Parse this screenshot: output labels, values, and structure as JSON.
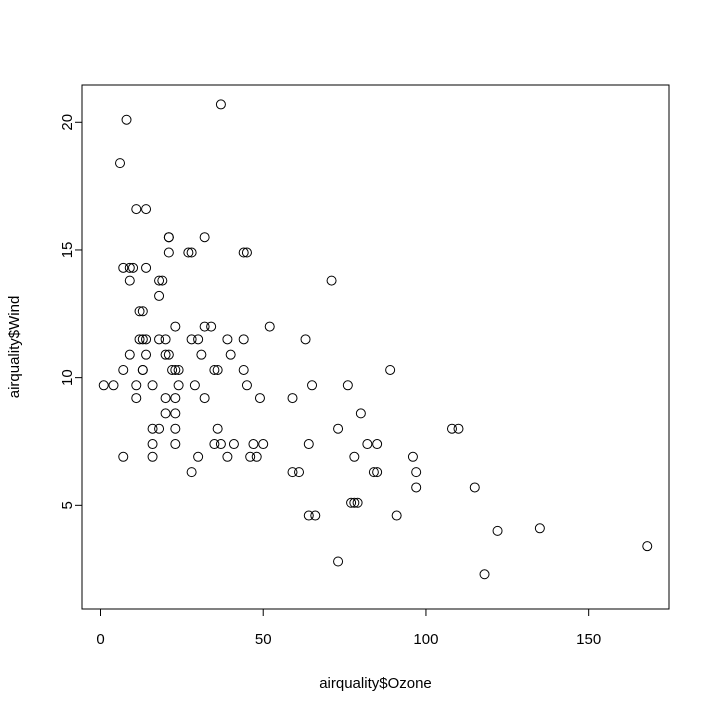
{
  "chart_data": {
    "type": "scatter",
    "x_label": "airquality$Ozone",
    "y_label": "airquality$Wind",
    "x": [
      41,
      36,
      12,
      18,
      28,
      23,
      19,
      8,
      7,
      16,
      11,
      14,
      18,
      14,
      34,
      6,
      30,
      11,
      1,
      11,
      4,
      32,
      23,
      45,
      115,
      37,
      29,
      71,
      39,
      23,
      21,
      37,
      20,
      12,
      13,
      135,
      49,
      32,
      64,
      40,
      77,
      97,
      97,
      85,
      10,
      27,
      7,
      48,
      35,
      61,
      79,
      63,
      16,
      80,
      108,
      20,
      52,
      82,
      50,
      64,
      59,
      39,
      9,
      16,
      78,
      35,
      66,
      122,
      89,
      110,
      44,
      28,
      65,
      22,
      59,
      23,
      31,
      44,
      21,
      9,
      45,
      168,
      73,
      76,
      118,
      84,
      85,
      96,
      78,
      73,
      91,
      47,
      32,
      20,
      23,
      21,
      24,
      44,
      21,
      28,
      9,
      13,
      46,
      18,
      13,
      24,
      16,
      13,
      23,
      36,
      7,
      14,
      30,
      14,
      18,
      20
    ],
    "y": [
      7.4,
      8.0,
      12.6,
      11.5,
      14.9,
      8.6,
      13.8,
      20.1,
      6.9,
      9.7,
      9.2,
      10.9,
      13.2,
      11.5,
      12.0,
      18.4,
      11.5,
      9.7,
      9.7,
      16.6,
      9.7,
      12.0,
      12.0,
      14.9,
      5.7,
      7.4,
      9.7,
      13.8,
      11.5,
      8.0,
      14.9,
      20.7,
      9.2,
      11.5,
      10.3,
      4.1,
      9.2,
      9.2,
      4.6,
      10.9,
      5.1,
      6.3,
      5.7,
      7.4,
      14.3,
      14.9,
      14.3,
      6.9,
      10.3,
      6.3,
      5.1,
      11.5,
      6.9,
      8.6,
      8.0,
      8.6,
      12.0,
      7.4,
      7.4,
      7.4,
      9.2,
      6.9,
      13.8,
      7.4,
      6.9,
      7.4,
      4.6,
      4.0,
      10.3,
      8.0,
      11.5,
      11.5,
      9.7,
      10.3,
      6.3,
      7.4,
      10.9,
      10.3,
      15.5,
      14.3,
      9.7,
      3.4,
      8.0,
      9.7,
      2.3,
      6.3,
      6.3,
      6.9,
      5.1,
      2.8,
      4.6,
      7.4,
      15.5,
      10.9,
      10.3,
      10.9,
      9.7,
      14.9,
      15.5,
      6.3,
      10.9,
      11.5,
      6.9,
      13.8,
      10.3,
      10.3,
      8.0,
      12.6,
      9.2,
      10.3,
      10.3,
      16.6,
      6.9,
      14.3,
      8.0,
      11.5
    ],
    "xlim": [
      -5.68,
      174.68
    ],
    "ylim": [
      0.94,
      21.46
    ],
    "xticks": [
      0,
      50,
      100,
      150
    ],
    "yticks": [
      5,
      10,
      15,
      20
    ]
  }
}
